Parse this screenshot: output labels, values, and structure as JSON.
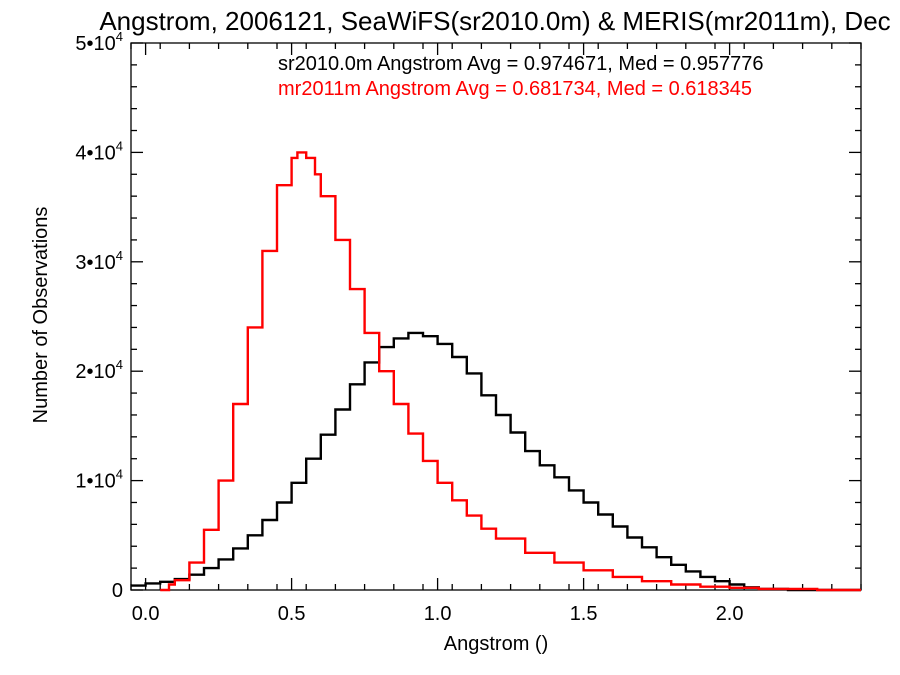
{
  "chart_data": {
    "type": "line",
    "title": "Angstrom, 2006121, SeaWiFS(sr2010.0m) & MERIS(mr2011m), Dec",
    "xlabel": "Angstrom ()",
    "ylabel": "Number of Observations",
    "xlim": [
      -0.05,
      2.45
    ],
    "ylim": [
      0,
      50000
    ],
    "x_ticks": [
      0.0,
      0.5,
      1.0,
      1.5,
      2.0
    ],
    "x_tick_labels": [
      "0.0",
      "0.5",
      "1.0",
      "1.5",
      "2.0"
    ],
    "y_ticks": [
      0,
      10000,
      20000,
      30000,
      40000,
      50000
    ],
    "y_tick_labels": [
      {
        "base": "0",
        "exp": ""
      },
      {
        "base": "1•10",
        "exp": "4"
      },
      {
        "base": "2•10",
        "exp": "4"
      },
      {
        "base": "3•10",
        "exp": "4"
      },
      {
        "base": "4•10",
        "exp": "4"
      },
      {
        "base": "5•10",
        "exp": "4"
      }
    ],
    "grid": false,
    "legend_position": "top-right",
    "series": [
      {
        "name": "sr2010.0m",
        "legend_text": "sr2010.0m Angstrom Avg = 0.974671, Med = 0.957776",
        "color": "#000000",
        "x": [
          -0.05,
          0.0,
          0.05,
          0.1,
          0.15,
          0.2,
          0.25,
          0.3,
          0.35,
          0.4,
          0.45,
          0.5,
          0.55,
          0.6,
          0.65,
          0.7,
          0.75,
          0.8,
          0.85,
          0.9,
          0.95,
          1.0,
          1.05,
          1.1,
          1.15,
          1.2,
          1.25,
          1.3,
          1.35,
          1.4,
          1.45,
          1.5,
          1.55,
          1.6,
          1.65,
          1.7,
          1.75,
          1.8,
          1.85,
          1.9,
          1.95,
          2.0,
          2.05,
          2.1,
          2.15,
          2.2,
          2.3,
          2.45
        ],
        "y": [
          400,
          600,
          750,
          1000,
          1400,
          2000,
          2800,
          3800,
          5000,
          6400,
          8000,
          9800,
          12000,
          14200,
          16500,
          18800,
          20800,
          22200,
          23000,
          23500,
          23200,
          22500,
          21300,
          19800,
          17800,
          16000,
          14400,
          12700,
          11400,
          10300,
          9100,
          8000,
          6900,
          5800,
          4800,
          3900,
          3000,
          2300,
          1700,
          1200,
          800,
          500,
          250,
          100,
          100,
          0,
          0,
          0
        ]
      },
      {
        "name": "mr2011m",
        "legend_text": "mr2011m Angstrom Avg = 0.681734, Med = 0.618345",
        "color": "#ff0000",
        "x": [
          0.05,
          0.08,
          0.1,
          0.15,
          0.2,
          0.25,
          0.3,
          0.35,
          0.4,
          0.45,
          0.5,
          0.52,
          0.55,
          0.58,
          0.6,
          0.65,
          0.7,
          0.75,
          0.8,
          0.85,
          0.9,
          0.95,
          1.0,
          1.05,
          1.1,
          1.15,
          1.2,
          1.3,
          1.4,
          1.5,
          1.6,
          1.7,
          1.8,
          1.9,
          2.0,
          2.1,
          2.2,
          2.3,
          2.45
        ],
        "y": [
          0,
          500,
          900,
          2500,
          5500,
          10000,
          17000,
          24000,
          31000,
          37000,
          39500,
          40000,
          39500,
          38000,
          36000,
          32000,
          27500,
          23500,
          20000,
          17000,
          14300,
          11800,
          9800,
          8200,
          6800,
          5600,
          4700,
          3400,
          2500,
          1800,
          1200,
          800,
          500,
          300,
          200,
          100,
          100,
          0,
          0
        ]
      }
    ]
  }
}
